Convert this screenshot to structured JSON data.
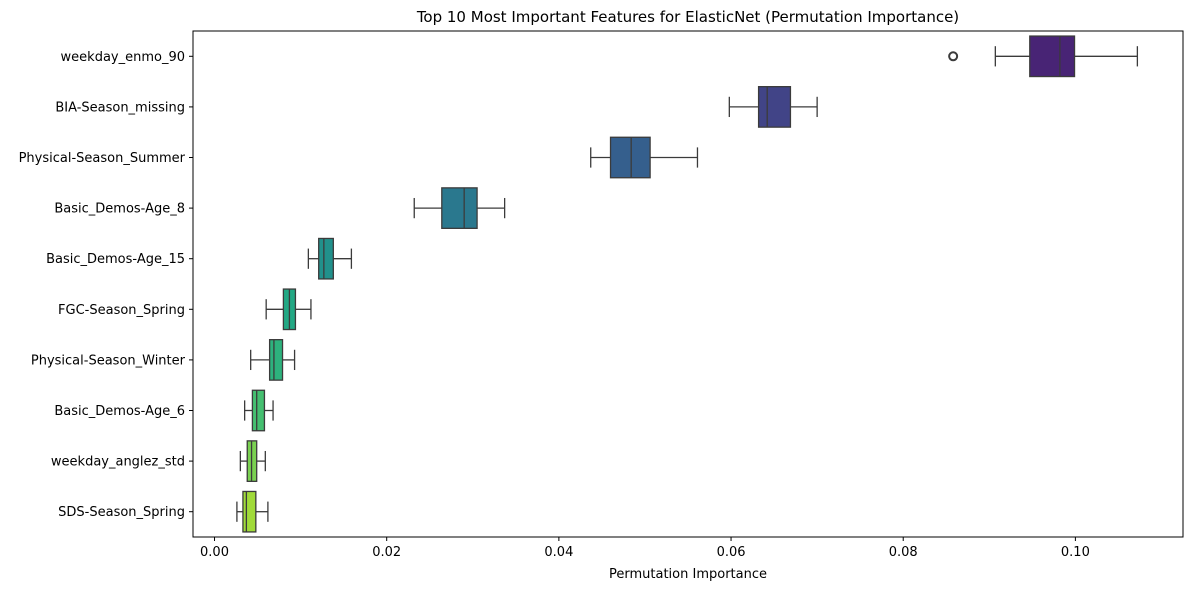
{
  "chart_data": {
    "type": "box",
    "title": "Top 10 Most Important Features for ElasticNet (Permutation Importance)",
    "xlabel": "Permutation Importance",
    "ylabel": "",
    "xlim": [
      -0.0025,
      0.1125
    ],
    "xticks": [
      "0.00",
      "0.02",
      "0.04",
      "0.06",
      "0.08",
      "0.10"
    ],
    "xtick_values": [
      0,
      0.02,
      0.04,
      0.06,
      0.08,
      0.1
    ],
    "grid": false,
    "features": [
      {
        "name": "weekday_enmo_90",
        "min": 0.0907,
        "q1": 0.0947,
        "median": 0.0982,
        "q3": 0.0999,
        "max": 0.1072,
        "outliers": [
          0.0858
        ],
        "color": "#482475"
      },
      {
        "name": "BIA-Season_missing",
        "min": 0.0598,
        "q1": 0.0632,
        "median": 0.0642,
        "q3": 0.0669,
        "max": 0.07,
        "outliers": [],
        "color": "#414487"
      },
      {
        "name": "Physical-Season_Summer",
        "min": 0.0437,
        "q1": 0.046,
        "median": 0.0484,
        "q3": 0.0506,
        "max": 0.0561,
        "outliers": [],
        "color": "#355f8d"
      },
      {
        "name": "Basic_Demos-Age_8",
        "min": 0.0232,
        "q1": 0.0264,
        "median": 0.029,
        "q3": 0.0305,
        "max": 0.0337,
        "outliers": [],
        "color": "#2a788e"
      },
      {
        "name": "Basic_Demos-Age_15",
        "min": 0.0109,
        "q1": 0.0121,
        "median": 0.0127,
        "q3": 0.0138,
        "max": 0.0159,
        "outliers": [],
        "color": "#21918c"
      },
      {
        "name": "FGC-Season_Spring",
        "min": 0.006,
        "q1": 0.008,
        "median": 0.0087,
        "q3": 0.0094,
        "max": 0.0112,
        "outliers": [],
        "color": "#22a884"
      },
      {
        "name": "Physical-Season_Winter",
        "min": 0.0042,
        "q1": 0.0064,
        "median": 0.0069,
        "q3": 0.0079,
        "max": 0.0093,
        "outliers": [],
        "color": "#2db27d"
      },
      {
        "name": "Basic_Demos-Age_6",
        "min": 0.0035,
        "q1": 0.0044,
        "median": 0.0049,
        "q3": 0.0058,
        "max": 0.0068,
        "outliers": [],
        "color": "#44bf70"
      },
      {
        "name": "weekday_anglez_std",
        "min": 0.003,
        "q1": 0.0038,
        "median": 0.0043,
        "q3": 0.0049,
        "max": 0.0059,
        "outliers": [],
        "color": "#7ad151"
      },
      {
        "name": "SDS-Season_Spring",
        "min": 0.0026,
        "q1": 0.0033,
        "median": 0.0037,
        "q3": 0.0048,
        "max": 0.0062,
        "outliers": [],
        "color": "#a0da39"
      }
    ]
  }
}
